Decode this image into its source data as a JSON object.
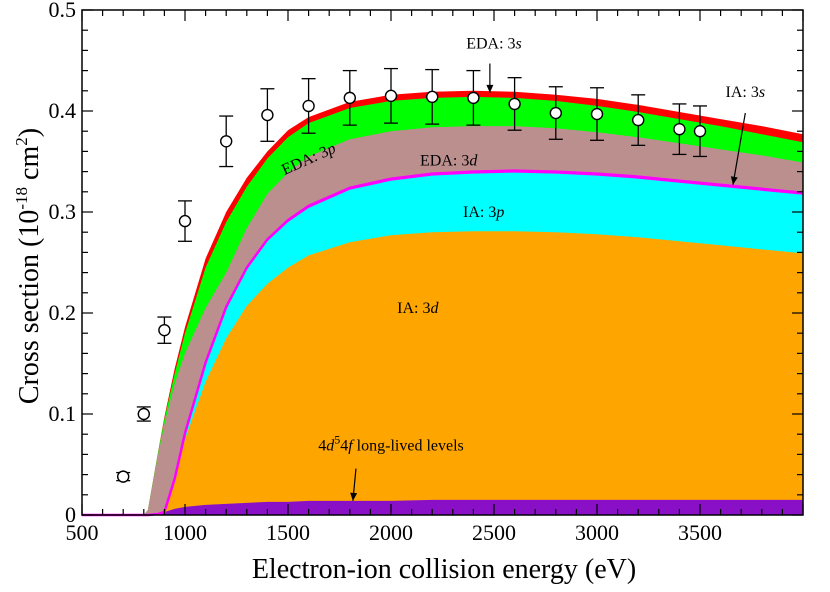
{
  "chart_data": {
    "type": "area",
    "xlabel": "Electron-ion collision energy (eV)",
    "ylabel": {
      "base": "Cross section (10",
      "exp1": "-18",
      "mid": " cm",
      "exp2": "2",
      "end": ")"
    },
    "xlim": [
      500,
      4000
    ],
    "ylim": [
      0,
      0.5
    ],
    "xticks": [
      500,
      1000,
      1500,
      2000,
      2500,
      3000,
      3500
    ],
    "yticks": [
      0,
      0.1,
      0.2,
      0.3,
      0.4,
      0.5
    ],
    "x": [
      500,
      800,
      820,
      870,
      900,
      950,
      1000,
      1100,
      1200,
      1300,
      1400,
      1500,
      1600,
      1800,
      2000,
      2200,
      2400,
      2600,
      2800,
      3000,
      3200,
      3400,
      3600,
      3800,
      4000
    ],
    "series_boundaries": [
      {
        "name": "4d54f long-lived levels",
        "color": "#8a10c8",
        "values": [
          0,
          0,
          0,
          0.001,
          0.003,
          0.006,
          0.008,
          0.01,
          0.011,
          0.012,
          0.013,
          0.013,
          0.014,
          0.014,
          0.014,
          0.015,
          0.015,
          0.015,
          0.015,
          0.015,
          0.015,
          0.015,
          0.015,
          0.015,
          0.015
        ]
      },
      {
        "name": "IA: 3d",
        "color": "#ffa500",
        "values": [
          0,
          0,
          0,
          0.001,
          0.003,
          0.035,
          0.075,
          0.132,
          0.175,
          0.207,
          0.229,
          0.245,
          0.257,
          0.27,
          0.277,
          0.28,
          0.281,
          0.281,
          0.28,
          0.278,
          0.275,
          0.271,
          0.267,
          0.263,
          0.259
        ]
      },
      {
        "name": "IA: 3p",
        "color": "#00ffff",
        "values": [
          0,
          0,
          0,
          0.001,
          0.003,
          0.035,
          0.08,
          0.15,
          0.205,
          0.243,
          0.271,
          0.29,
          0.304,
          0.322,
          0.331,
          0.336,
          0.338,
          0.339,
          0.338,
          0.336,
          0.333,
          0.329,
          0.325,
          0.321,
          0.317
        ]
      },
      {
        "name": "IA: 3s",
        "color": "#ff00ff",
        "values": [
          0,
          0,
          0,
          0.001,
          0.003,
          0.036,
          0.081,
          0.151,
          0.206,
          0.245,
          0.273,
          0.292,
          0.306,
          0.324,
          0.333,
          0.338,
          0.34,
          0.341,
          0.34,
          0.338,
          0.335,
          0.331,
          0.327,
          0.323,
          0.319
        ]
      },
      {
        "name": "EDA: 3d",
        "color": "#bc8f8f",
        "values": [
          0,
          0,
          0.005,
          0.06,
          0.09,
          0.13,
          0.16,
          0.205,
          0.24,
          0.284,
          0.318,
          0.339,
          0.355,
          0.372,
          0.38,
          0.384,
          0.385,
          0.385,
          0.383,
          0.379,
          0.374,
          0.368,
          0.362,
          0.356,
          0.349
        ]
      },
      {
        "name": "EDA: 3p",
        "color": "#00ff00",
        "values": [
          0,
          0,
          0.005,
          0.062,
          0.095,
          0.14,
          0.18,
          0.245,
          0.29,
          0.325,
          0.353,
          0.374,
          0.388,
          0.403,
          0.41,
          0.413,
          0.414,
          0.413,
          0.41,
          0.405,
          0.399,
          0.392,
          0.385,
          0.377,
          0.369
        ]
      },
      {
        "name": "EDA: 3s",
        "color": "#ff0000",
        "values": [
          0,
          0,
          0.005,
          0.063,
          0.097,
          0.145,
          0.186,
          0.254,
          0.3,
          0.334,
          0.36,
          0.381,
          0.394,
          0.409,
          0.416,
          0.419,
          0.42,
          0.419,
          0.416,
          0.412,
          0.406,
          0.399,
          0.392,
          0.385,
          0.377
        ]
      }
    ],
    "experiment": {
      "x": [
        700,
        800,
        900,
        1000,
        1200,
        1400,
        1600,
        1800,
        2000,
        2200,
        2400,
        2600,
        2800,
        3000,
        3200,
        3400,
        3500
      ],
      "y": [
        0.038,
        0.1,
        0.183,
        0.291,
        0.37,
        0.396,
        0.405,
        0.413,
        0.415,
        0.414,
        0.413,
        0.407,
        0.398,
        0.397,
        0.391,
        0.382,
        0.38
      ],
      "err": [
        0.004,
        0.007,
        0.013,
        0.02,
        0.025,
        0.026,
        0.027,
        0.027,
        0.027,
        0.027,
        0.027,
        0.026,
        0.026,
        0.026,
        0.025,
        0.025,
        0.025
      ]
    },
    "annotations": [
      {
        "text": "EDA: 3",
        "italic": "s",
        "x": 2500,
        "y": 0.462,
        "rot": 0
      },
      {
        "text": "IA: 3",
        "italic": "s",
        "x": 3720,
        "y": 0.414,
        "rot": 0
      },
      {
        "text": "EDA: 3",
        "italic": "p",
        "x": 1610,
        "y": 0.348,
        "rot": -24
      },
      {
        "text": "EDA: 3",
        "italic": "d",
        "x": 2280,
        "y": 0.346,
        "rot": 0
      },
      {
        "text": "IA: 3",
        "italic": "p",
        "x": 2450,
        "y": 0.295,
        "rot": 0
      },
      {
        "text": "IA: 3",
        "italic": "d",
        "x": 2130,
        "y": 0.2,
        "rot": 0
      }
    ],
    "long_lived_label": {
      "pre": "4",
      "i1": "d",
      "sup": "5",
      "mid": "4",
      "i2": "f",
      "post": " long-lived levels"
    }
  }
}
